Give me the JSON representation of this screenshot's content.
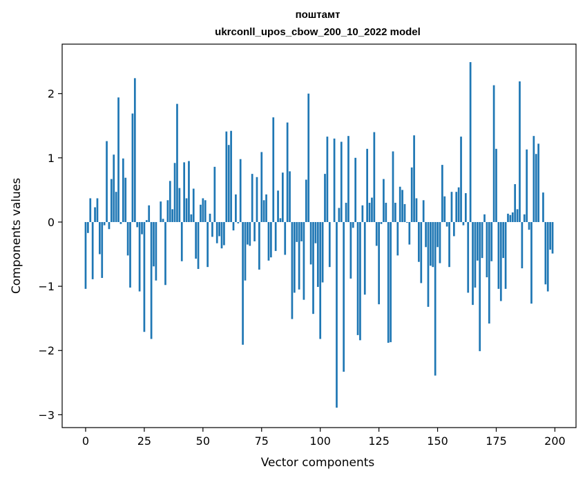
{
  "chart_data": {
    "type": "bar",
    "title": "поштамт",
    "subtitle": "ukrconll_upos_cbow_200_10_2022 model",
    "xlabel": "Vector components",
    "ylabel": "Components values",
    "xlim": [
      -10,
      209
    ],
    "ylim": [
      -3.2,
      2.77
    ],
    "xticks": [
      0,
      25,
      50,
      75,
      100,
      125,
      150,
      175,
      200
    ],
    "yticks": [
      -3,
      -2,
      -1,
      0,
      1,
      2
    ],
    "ytick_labels": [
      "−3",
      "−2",
      "−1",
      "0",
      "1",
      "2"
    ],
    "bar_color": "#1f77b4",
    "values": [
      -1.04,
      -0.17,
      0.37,
      -0.89,
      0.23,
      0.37,
      -0.5,
      -0.87,
      -0.05,
      1.26,
      -0.11,
      0.67,
      1.05,
      0.47,
      1.94,
      -0.03,
      0.99,
      0.69,
      -0.52,
      -1.02,
      1.69,
      2.24,
      -0.08,
      -1.08,
      -0.19,
      -1.71,
      0.03,
      0.26,
      -1.82,
      -0.69,
      -0.91,
      0.0,
      0.32,
      0.05,
      -0.98,
      0.34,
      0.64,
      0.2,
      0.92,
      1.84,
      0.53,
      -0.61,
      0.93,
      0.37,
      0.95,
      0.12,
      0.52,
      -0.57,
      -0.73,
      0.27,
      0.37,
      0.34,
      -0.7,
      0.13,
      -0.23,
      0.86,
      -0.33,
      -0.22,
      -0.41,
      -0.36,
      1.41,
      1.2,
      1.42,
      -0.13,
      0.43,
      -0.02,
      0.98,
      -1.91,
      -0.91,
      -0.35,
      -0.37,
      0.75,
      -0.3,
      0.7,
      -0.74,
      1.09,
      0.34,
      0.43,
      -0.6,
      -0.55,
      1.63,
      -0.45,
      0.49,
      0.06,
      0.77,
      -0.51,
      1.55,
      0.79,
      -1.51,
      -1.1,
      -0.31,
      -1.05,
      -0.3,
      -1.21,
      0.66,
      2.0,
      -0.66,
      -1.43,
      -0.33,
      -1.01,
      -1.82,
      -0.94,
      0.75,
      1.33,
      -0.7,
      0.0,
      1.3,
      -2.89,
      0.22,
      1.25,
      -2.33,
      0.3,
      1.34,
      -0.88,
      -0.09,
      1.0,
      -1.76,
      -1.84,
      0.26,
      -1.13,
      1.14,
      0.3,
      0.38,
      1.4,
      -0.37,
      -1.28,
      -0.03,
      0.67,
      0.3,
      -1.88,
      -1.87,
      1.1,
      0.3,
      -0.52,
      0.55,
      0.5,
      0.28,
      -0.01,
      -0.35,
      0.85,
      1.35,
      0.37,
      -0.62,
      -0.95,
      0.34,
      -0.39,
      -1.32,
      -0.68,
      -0.7,
      -2.39,
      -0.39,
      -0.64,
      0.89,
      0.4,
      -0.07,
      -0.7,
      0.47,
      -0.22,
      0.47,
      0.54,
      1.33,
      -0.05,
      0.45,
      -1.1,
      2.49,
      -1.29,
      -1.02,
      -0.6,
      -2.01,
      -0.56,
      0.12,
      -0.86,
      -1.58,
      -0.61,
      2.13,
      1.14,
      -1.04,
      -1.23,
      -0.56,
      -1.04,
      0.13,
      0.11,
      0.15,
      0.59,
      0.2,
      2.19,
      -0.72,
      0.12,
      1.13,
      -0.12,
      -1.27,
      1.34,
      1.06,
      1.22,
      0.0,
      0.46,
      -0.97,
      -1.08,
      -0.43,
      -0.49
    ]
  }
}
